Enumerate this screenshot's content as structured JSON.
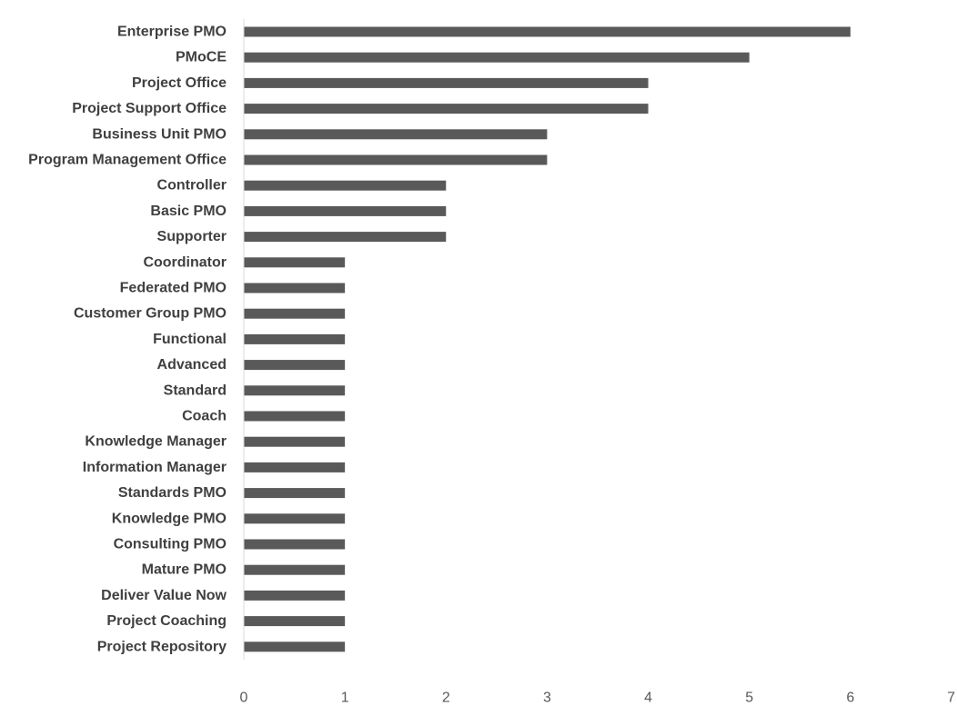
{
  "chart_data": {
    "type": "bar",
    "orientation": "horizontal",
    "categories": [
      "Enterprise PMO",
      "PMoCE",
      "Project Office",
      "Project Support Office",
      "Business Unit PMO",
      "Program Management Office",
      "Controller",
      "Basic PMO",
      "Supporter",
      "Coordinator",
      "Federated PMO",
      "Customer Group PMO",
      "Functional",
      "Advanced",
      "Standard",
      "Coach",
      "Knowledge Manager",
      "Information Manager",
      "Standards PMO",
      "Knowledge PMO",
      "Consulting PMO",
      "Mature PMO",
      "Deliver Value Now",
      "Project Coaching",
      "Project Repository"
    ],
    "values": [
      6,
      5,
      4,
      4,
      3,
      3,
      2,
      2,
      2,
      1,
      1,
      1,
      1,
      1,
      1,
      1,
      1,
      1,
      1,
      1,
      1,
      1,
      1,
      1,
      1
    ],
    "xlim": [
      0,
      7
    ],
    "xticks": [
      "0",
      "1",
      "2",
      "3",
      "4",
      "5",
      "6",
      "7"
    ],
    "grid": false,
    "bar_color": "#595959",
    "title": "",
    "xlabel": "",
    "ylabel": ""
  }
}
